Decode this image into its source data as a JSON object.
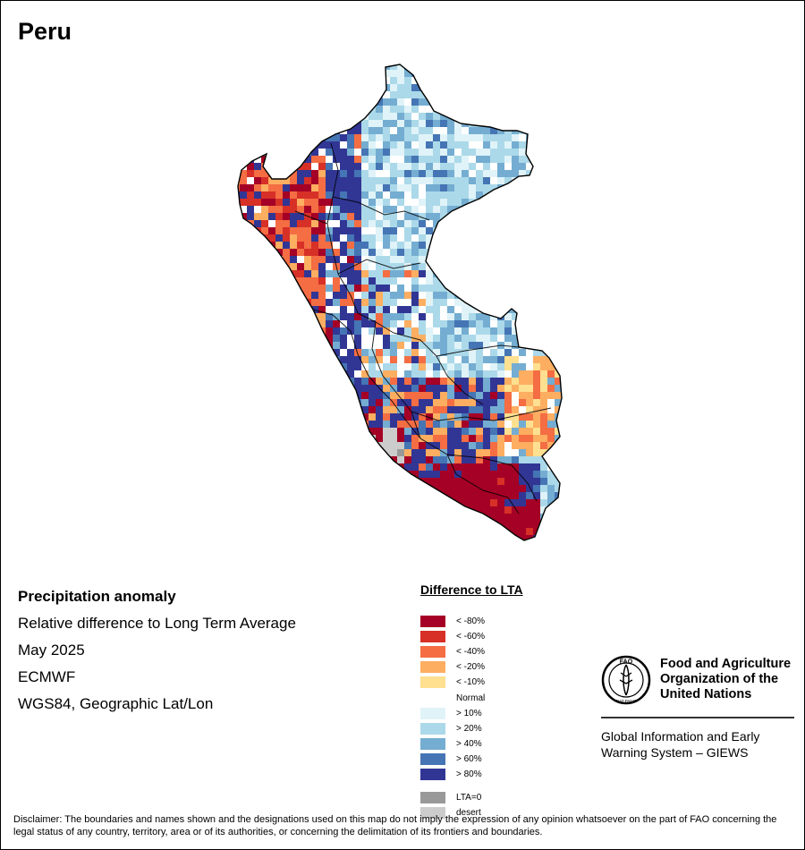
{
  "title": "Peru",
  "info": {
    "heading": "Precipitation anomaly",
    "subheading": "Relative difference to Long Term Average",
    "period": "May 2025",
    "source": "ECMWF",
    "projection": "WGS84, Geographic Lat/Lon"
  },
  "legend": {
    "title": "Difference to LTA",
    "items": [
      {
        "label": "< -80%",
        "color": "#a50026"
      },
      {
        "label": "< -60%",
        "color": "#d73027"
      },
      {
        "label": "< -40%",
        "color": "#f46d43"
      },
      {
        "label": "< -20%",
        "color": "#fdae61"
      },
      {
        "label": "< -10%",
        "color": "#fee090"
      },
      {
        "label": "Normal",
        "color": "#ffffff"
      },
      {
        "label": "> 10%",
        "color": "#e0f3f8"
      },
      {
        "label": "> 20%",
        "color": "#abd9e9"
      },
      {
        "label": "> 40%",
        "color": "#74add1"
      },
      {
        "label": "> 60%",
        "color": "#4575b4"
      },
      {
        "label": "> 80%",
        "color": "#313695"
      },
      {
        "label": "LTA=0",
        "color": "#999999"
      },
      {
        "label": "desert",
        "color": "#cccccc"
      }
    ]
  },
  "organization": {
    "name": "Food and Agriculture\nOrganization of the\nUnited Nations",
    "logo_text": "FAO",
    "logo_motto": "FIAT PANIS",
    "system": "Global Information and Early\nWarning System – GIEWS"
  },
  "disclaimer": "Disclaimer: The boundaries and names shown and the designations used on this map do not imply the expression of any opinion whatsoever on the part of FAO concerning the legal status of any country, territory, area or of its authorities, or concerning the delimitation of its frontiers and boundaries."
}
